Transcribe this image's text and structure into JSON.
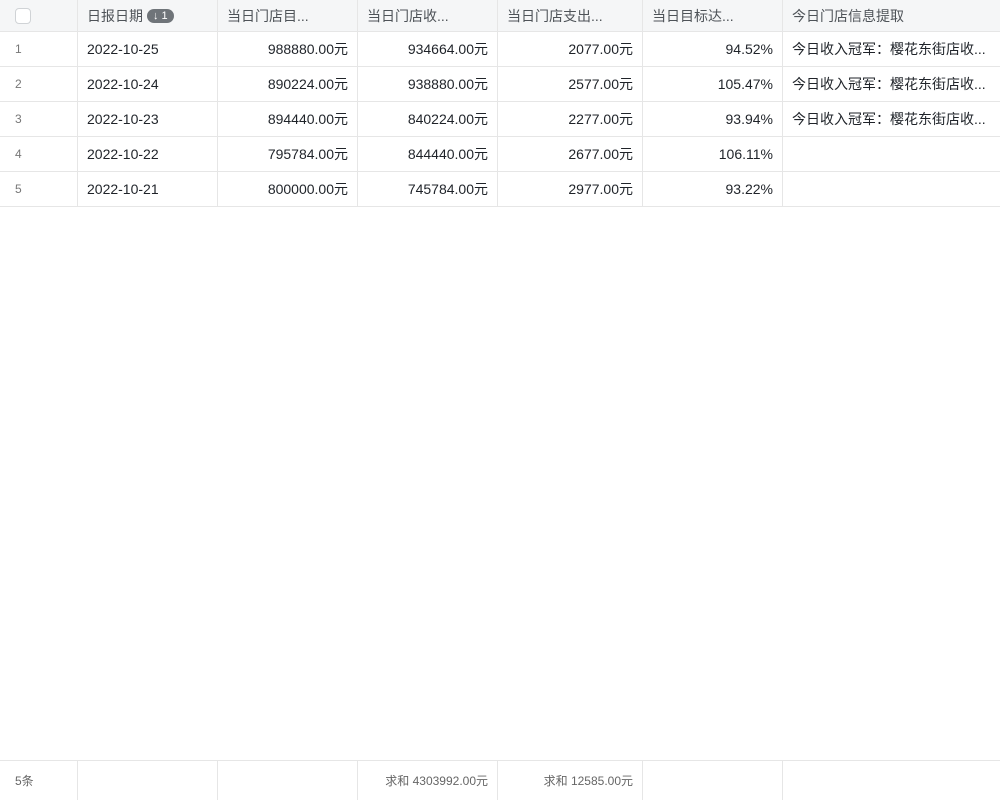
{
  "header": {
    "columns": [
      "日报日期",
      "当日门店目...",
      "当日门店收...",
      "当日门店支出...",
      "当日目标达...",
      "今日门店信息提取"
    ],
    "sort_badge": "↓ 1"
  },
  "rows": [
    [
      "1",
      "2022-10-25",
      "988880.00元",
      "934664.00元",
      "2077.00元",
      "94.52%",
      "今日收入冠军：樱花东街店收..."
    ],
    [
      "2",
      "2022-10-24",
      "890224.00元",
      "938880.00元",
      "2577.00元",
      "105.47%",
      "今日收入冠军：樱花东街店收..."
    ],
    [
      "3",
      "2022-10-23",
      "894440.00元",
      "840224.00元",
      "2277.00元",
      "93.94%",
      "今日收入冠军：樱花东街店收..."
    ],
    [
      "4",
      "2022-10-22",
      "795784.00元",
      "844440.00元",
      "2677.00元",
      "106.11%",
      ""
    ],
    [
      "5",
      "2022-10-21",
      "800000.00元",
      "745784.00元",
      "2977.00元",
      "93.22%",
      ""
    ]
  ],
  "footer": {
    "count": "5条",
    "sum_income": "求和 4303992.00元",
    "sum_expense": "求和 12585.00元"
  }
}
